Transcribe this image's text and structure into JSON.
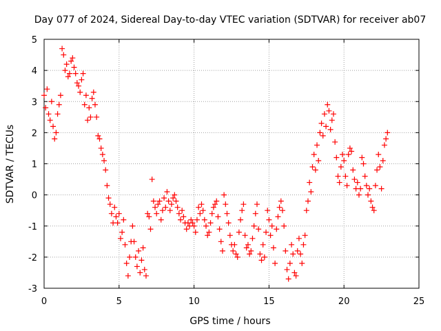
{
  "chart_data": {
    "type": "scatter",
    "title": "Day 077 of 2024, Sidereal Day-to-day VTEC variation (SDTVAR) for receiver ab07",
    "xlabel": "GPS time / hours",
    "ylabel": "SDTVAR / TECUs",
    "xlim": [
      0,
      25
    ],
    "ylim": [
      -3,
      5
    ],
    "x_ticks": [
      "0",
      "5",
      "10",
      "15",
      "20",
      "25"
    ],
    "y_ticks": [
      "5",
      "4",
      "3",
      "2",
      "1",
      "0",
      "-1",
      "-2",
      "-3"
    ],
    "grid": true,
    "marker": "+",
    "series": [
      {
        "name": "SDTVAR",
        "color": "#ff0000",
        "points": [
          [
            0.0,
            3.2
          ],
          [
            0.1,
            2.8
          ],
          [
            0.2,
            3.4
          ],
          [
            0.3,
            2.6
          ],
          [
            0.4,
            2.4
          ],
          [
            0.5,
            3.0
          ],
          [
            0.6,
            2.2
          ],
          [
            0.7,
            1.8
          ],
          [
            0.8,
            2.0
          ],
          [
            0.9,
            2.6
          ],
          [
            1.0,
            2.9
          ],
          [
            1.1,
            3.2
          ],
          [
            1.2,
            4.7
          ],
          [
            1.3,
            4.5
          ],
          [
            1.4,
            4.0
          ],
          [
            1.5,
            4.2
          ],
          [
            1.6,
            3.8
          ],
          [
            1.7,
            3.9
          ],
          [
            1.8,
            4.3
          ],
          [
            1.9,
            4.4
          ],
          [
            2.0,
            4.1
          ],
          [
            2.1,
            3.9
          ],
          [
            2.2,
            3.6
          ],
          [
            2.3,
            3.5
          ],
          [
            2.4,
            3.3
          ],
          [
            2.5,
            3.7
          ],
          [
            2.6,
            3.9
          ],
          [
            2.7,
            2.9
          ],
          [
            2.8,
            3.2
          ],
          [
            2.9,
            2.4
          ],
          [
            3.0,
            2.8
          ],
          [
            3.1,
            2.5
          ],
          [
            3.2,
            3.1
          ],
          [
            3.3,
            3.3
          ],
          [
            3.4,
            2.9
          ],
          [
            3.5,
            2.5
          ],
          [
            3.6,
            1.9
          ],
          [
            3.7,
            1.8
          ],
          [
            3.8,
            1.5
          ],
          [
            3.9,
            1.3
          ],
          [
            4.0,
            1.1
          ],
          [
            4.1,
            0.8
          ],
          [
            4.2,
            0.3
          ],
          [
            4.3,
            -0.1
          ],
          [
            4.4,
            -0.3
          ],
          [
            4.5,
            -0.6
          ],
          [
            4.6,
            -0.9
          ],
          [
            4.7,
            -0.4
          ],
          [
            4.8,
            -0.7
          ],
          [
            4.9,
            -0.9
          ],
          [
            5.0,
            -0.6
          ],
          [
            5.1,
            -1.4
          ],
          [
            5.2,
            -1.2
          ],
          [
            5.3,
            -0.8
          ],
          [
            5.4,
            -1.6
          ],
          [
            5.5,
            -2.2
          ],
          [
            5.6,
            -2.6
          ],
          [
            5.7,
            -2.0
          ],
          [
            5.8,
            -1.5
          ],
          [
            5.9,
            -1.0
          ],
          [
            6.0,
            -1.5
          ],
          [
            6.1,
            -2.0
          ],
          [
            6.2,
            -2.3
          ],
          [
            6.3,
            -1.8
          ],
          [
            6.4,
            -2.5
          ],
          [
            6.5,
            -2.1
          ],
          [
            6.6,
            -1.7
          ],
          [
            6.7,
            -2.4
          ],
          [
            6.8,
            -2.6
          ],
          [
            6.9,
            -0.6
          ],
          [
            7.0,
            -0.7
          ],
          [
            7.1,
            -1.1
          ],
          [
            7.2,
            0.5
          ],
          [
            7.3,
            -0.2
          ],
          [
            7.4,
            -0.4
          ],
          [
            7.5,
            -0.6
          ],
          [
            7.6,
            -0.3
          ],
          [
            7.7,
            -0.2
          ],
          [
            7.8,
            -0.8
          ],
          [
            7.9,
            -0.5
          ],
          [
            8.0,
            -0.1
          ],
          [
            8.1,
            -0.4
          ],
          [
            8.2,
            0.1
          ],
          [
            8.3,
            -0.2
          ],
          [
            8.4,
            -0.5
          ],
          [
            8.5,
            -0.3
          ],
          [
            8.6,
            -0.1
          ],
          [
            8.7,
            0.0
          ],
          [
            8.8,
            -0.2
          ],
          [
            8.9,
            -0.4
          ],
          [
            9.0,
            -0.6
          ],
          [
            9.1,
            -0.8
          ],
          [
            9.2,
            -0.5
          ],
          [
            9.3,
            -0.7
          ],
          [
            9.4,
            -0.9
          ],
          [
            9.5,
            -1.1
          ],
          [
            9.6,
            -0.9
          ],
          [
            9.7,
            -1.0
          ],
          [
            9.8,
            -0.8
          ],
          [
            9.9,
            -0.9
          ],
          [
            10.0,
            -1.0
          ],
          [
            10.1,
            -1.2
          ],
          [
            10.2,
            -0.8
          ],
          [
            10.3,
            -0.4
          ],
          [
            10.4,
            -0.6
          ],
          [
            10.5,
            -0.3
          ],
          [
            10.6,
            -0.5
          ],
          [
            10.7,
            -0.8
          ],
          [
            10.8,
            -1.0
          ],
          [
            10.9,
            -1.3
          ],
          [
            11.0,
            -1.2
          ],
          [
            11.1,
            -0.9
          ],
          [
            11.2,
            -0.6
          ],
          [
            11.3,
            -0.4
          ],
          [
            11.4,
            -0.3
          ],
          [
            11.5,
            -0.2
          ],
          [
            11.6,
            -0.7
          ],
          [
            11.7,
            -1.1
          ],
          [
            11.8,
            -1.5
          ],
          [
            11.9,
            -1.8
          ],
          [
            12.0,
            0.0
          ],
          [
            12.1,
            -0.3
          ],
          [
            12.2,
            -0.6
          ],
          [
            12.3,
            -0.9
          ],
          [
            12.4,
            -1.3
          ],
          [
            12.5,
            -1.6
          ],
          [
            12.6,
            -1.8
          ],
          [
            12.7,
            -1.6
          ],
          [
            12.8,
            -1.9
          ],
          [
            12.9,
            -2.0
          ],
          [
            13.0,
            -1.2
          ],
          [
            13.1,
            -0.8
          ],
          [
            13.2,
            -0.5
          ],
          [
            13.3,
            -0.3
          ],
          [
            13.4,
            -1.3
          ],
          [
            13.5,
            -1.7
          ],
          [
            13.6,
            -1.6
          ],
          [
            13.7,
            -1.9
          ],
          [
            13.8,
            -1.8
          ],
          [
            13.9,
            -1.4
          ],
          [
            14.0,
            -1.0
          ],
          [
            14.1,
            -0.6
          ],
          [
            14.2,
            -0.3
          ],
          [
            14.3,
            -1.1
          ],
          [
            14.4,
            -1.9
          ],
          [
            14.5,
            -2.1
          ],
          [
            14.6,
            -1.6
          ],
          [
            14.7,
            -2.0
          ],
          [
            14.8,
            -1.2
          ],
          [
            14.9,
            -0.5
          ],
          [
            15.0,
            -0.8
          ],
          [
            15.1,
            -1.3
          ],
          [
            15.2,
            -1.0
          ],
          [
            15.3,
            -1.7
          ],
          [
            15.4,
            -2.2
          ],
          [
            15.5,
            -1.1
          ],
          [
            15.6,
            -0.7
          ],
          [
            15.7,
            -0.4
          ],
          [
            15.8,
            -0.2
          ],
          [
            15.9,
            -0.5
          ],
          [
            16.0,
            -1.0
          ],
          [
            16.1,
            -1.8
          ],
          [
            16.2,
            -2.4
          ],
          [
            16.3,
            -2.7
          ],
          [
            16.4,
            -2.2
          ],
          [
            16.5,
            -1.6
          ],
          [
            16.6,
            -1.9
          ],
          [
            16.7,
            -2.5
          ],
          [
            16.8,
            -2.6
          ],
          [
            16.9,
            -1.8
          ],
          [
            17.0,
            -1.4
          ],
          [
            17.1,
            -1.9
          ],
          [
            17.2,
            -2.2
          ],
          [
            17.3,
            -1.6
          ],
          [
            17.4,
            -1.3
          ],
          [
            17.5,
            -0.5
          ],
          [
            17.6,
            -0.2
          ],
          [
            17.7,
            0.4
          ],
          [
            17.8,
            0.1
          ],
          [
            17.9,
            0.9
          ],
          [
            18.0,
            1.3
          ],
          [
            18.1,
            0.8
          ],
          [
            18.2,
            1.6
          ],
          [
            18.3,
            1.1
          ],
          [
            18.4,
            2.0
          ],
          [
            18.5,
            2.3
          ],
          [
            18.6,
            1.9
          ],
          [
            18.7,
            2.6
          ],
          [
            18.8,
            2.2
          ],
          [
            18.9,
            2.9
          ],
          [
            19.0,
            2.7
          ],
          [
            19.1,
            2.1
          ],
          [
            19.2,
            2.4
          ],
          [
            19.3,
            2.6
          ],
          [
            19.4,
            1.7
          ],
          [
            19.5,
            1.2
          ],
          [
            19.6,
            0.6
          ],
          [
            19.7,
            0.4
          ],
          [
            19.8,
            0.9
          ],
          [
            19.9,
            1.3
          ],
          [
            20.0,
            1.1
          ],
          [
            20.1,
            0.6
          ],
          [
            20.2,
            0.3
          ],
          [
            20.3,
            1.3
          ],
          [
            20.4,
            1.5
          ],
          [
            20.5,
            1.4
          ],
          [
            20.6,
            0.8
          ],
          [
            20.7,
            0.5
          ],
          [
            20.8,
            0.2
          ],
          [
            20.9,
            0.4
          ],
          [
            21.0,
            0.0
          ],
          [
            21.1,
            0.2
          ],
          [
            21.2,
            1.2
          ],
          [
            21.3,
            1.0
          ],
          [
            21.4,
            0.6
          ],
          [
            21.5,
            0.3
          ],
          [
            21.6,
            0.0
          ],
          [
            21.7,
            0.2
          ],
          [
            21.8,
            -0.2
          ],
          [
            21.9,
            -0.4
          ],
          [
            22.0,
            -0.5
          ],
          [
            22.1,
            0.3
          ],
          [
            22.2,
            0.8
          ],
          [
            22.3,
            1.3
          ],
          [
            22.4,
            0.9
          ],
          [
            22.5,
            0.2
          ],
          [
            22.6,
            1.1
          ],
          [
            22.7,
            1.6
          ],
          [
            22.8,
            1.8
          ],
          [
            22.9,
            2.0
          ]
        ]
      }
    ]
  }
}
